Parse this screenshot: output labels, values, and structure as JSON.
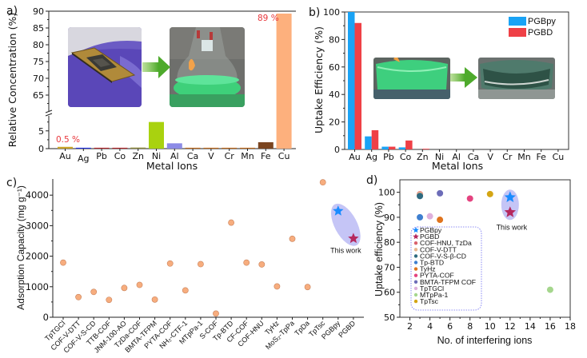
{
  "chart_data": [
    {
      "id": "a",
      "panel_label": "a)",
      "type": "bar",
      "title": "",
      "xlabel": "Metal Ions",
      "ylabel": "Relative Concentration (%)",
      "broken_axis": true,
      "ylim_lower": [
        0,
        9
      ],
      "ylim_upper": [
        60,
        90
      ],
      "yticks_lower": [
        0,
        5
      ],
      "yticks_upper": [
        65,
        70,
        75,
        80,
        85,
        90
      ],
      "categories": [
        "Au",
        "Ag",
        "Pb",
        "Co",
        "Zn",
        "Ni",
        "Al",
        "Ca",
        "V",
        "Cr",
        "Mn",
        "Fe",
        "Cu"
      ],
      "values": [
        0.5,
        0.2,
        0.2,
        0.2,
        0.3,
        7.5,
        1.5,
        0.2,
        0.2,
        0.2,
        0.2,
        1.8,
        89
      ],
      "colors": [
        "#c9a227",
        "#1f2fe0",
        "#b3262b",
        "#b3262b",
        "#8e8a3c",
        "#a9d20f",
        "#8c8be6",
        "#c06a1c",
        "#c06a1c",
        "#c06a1c",
        "#c06a1c",
        "#7b4520",
        "#fdb07d"
      ],
      "annotations": [
        {
          "category": "Au",
          "text": "0.5 %"
        },
        {
          "category": "Cu",
          "text": "89 %"
        }
      ],
      "inset_images": [
        "cpu-chip-on-gloved-hand-photo",
        "green-solution-flask-photo"
      ]
    },
    {
      "id": "b",
      "panel_label": "b)",
      "type": "bar",
      "title": "",
      "xlabel": "Metal Ions",
      "ylabel": "Uptake Efficiency (%)",
      "ylim": [
        0,
        100
      ],
      "yticks": [
        0,
        20,
        40,
        60,
        80,
        100
      ],
      "categories": [
        "Au",
        "Ag",
        "Pb",
        "Co",
        "Zn",
        "Ni",
        "Al",
        "Ca",
        "V",
        "Cr",
        "Mn",
        "Fe",
        "Cu"
      ],
      "series": [
        {
          "name": "PGBpy",
          "color": "#1aa3f5",
          "values": [
            100,
            9.5,
            2,
            1.5,
            0,
            0,
            0,
            0,
            0,
            0,
            0,
            0,
            0
          ]
        },
        {
          "name": "PGBD",
          "color": "#ef4046",
          "values": [
            92,
            14,
            2,
            6.5,
            0.5,
            0,
            0,
            0,
            0,
            0,
            0,
            0,
            0
          ]
        }
      ],
      "legend": "top-right",
      "inset_images": [
        "green-solution-before-photo",
        "solution-after-uptake-photo"
      ]
    },
    {
      "id": "c",
      "panel_label": "c)",
      "type": "scatter",
      "title": "",
      "xlabel": "",
      "ylabel": "Adsorption Capacity (mg g⁻¹)",
      "ylim": [
        0,
        4500
      ],
      "yticks": [
        0,
        1000,
        2000,
        3000,
        4000
      ],
      "categories": [
        "TpTGCl",
        "COF-V-DTT",
        "COF-V-S-CD",
        "TTB-COF",
        "JNM-100-AO",
        "TzDa-COF",
        "BMTA-TFPM",
        "PYTA-COF",
        "NH₂-CTF-1",
        "MTpPa-1",
        "S-COF",
        "Tp-BTD",
        "CF-COF",
        "COF-HNU",
        "TyHz",
        "MoS₂-TpPa",
        "TpDa",
        "TpTsc",
        "PGBpy",
        "PGBD"
      ],
      "values": [
        1790,
        660,
        830,
        570,
        960,
        1060,
        580,
        1760,
        880,
        1740,
        120,
        3100,
        1790,
        1730,
        1010,
        2570,
        990,
        4420,
        3480,
        2580
      ],
      "marker_color": "#f7ad7e",
      "highlight": [
        {
          "category": "PGBpy",
          "marker": "star",
          "color": "#1a8cff"
        },
        {
          "category": "PGBD",
          "marker": "star",
          "color": "#b5285f"
        }
      ],
      "annotation": "This work"
    },
    {
      "id": "d",
      "panel_label": "d)",
      "type": "scatter",
      "title": "",
      "xlabel": "No. of interfering ions",
      "ylabel": "Uptake efficiency (%)",
      "xlim": [
        1,
        18
      ],
      "ylim": [
        50,
        105
      ],
      "xticks": [
        2,
        4,
        6,
        8,
        10,
        12,
        14,
        16,
        18
      ],
      "yticks": [
        50,
        60,
        70,
        80,
        90,
        100
      ],
      "series": [
        {
          "name": "PGBpy",
          "marker": "star",
          "color": "#1a8cff",
          "x": 12,
          "y": 98
        },
        {
          "name": "PGBD",
          "marker": "star",
          "color": "#b5285f",
          "x": 12,
          "y": 92
        },
        {
          "name": "COF-HNU, TzDa",
          "marker": "circle",
          "color": "#d9616d",
          "x": 3,
          "y": 99.2
        },
        {
          "name": "COF-V-DTT",
          "marker": "circle",
          "color": "#e8b58f",
          "x": 3,
          "y": 99
        },
        {
          "name": "COF-V-S-β-CD",
          "marker": "circle",
          "color": "#2f6a80",
          "x": 3,
          "y": 98.5
        },
        {
          "name": "Tp-BTD",
          "marker": "circle",
          "color": "#3f7fd0",
          "x": 3,
          "y": 90
        },
        {
          "name": "TyHz",
          "marker": "circle",
          "color": "#e0741e",
          "x": 5,
          "y": 89
        },
        {
          "name": "PYTA-COF",
          "marker": "circle",
          "color": "#e4437f",
          "x": 8,
          "y": 97.5
        },
        {
          "name": "BMTA-TFPM COF",
          "marker": "circle",
          "color": "#6c6cb8",
          "x": 5,
          "y": 99.6
        },
        {
          "name": "TpTGCl",
          "marker": "circle",
          "color": "#deb0dc",
          "x": 4,
          "y": 90.4
        },
        {
          "name": "MTpPa-1",
          "marker": "circle",
          "color": "#a5d68d",
          "x": 16,
          "y": 61
        },
        {
          "name": "TpTsc",
          "marker": "circle",
          "color": "#d4a514",
          "x": 10,
          "y": 99.3
        }
      ],
      "legend": "bottom-left",
      "annotation": "This work"
    }
  ]
}
